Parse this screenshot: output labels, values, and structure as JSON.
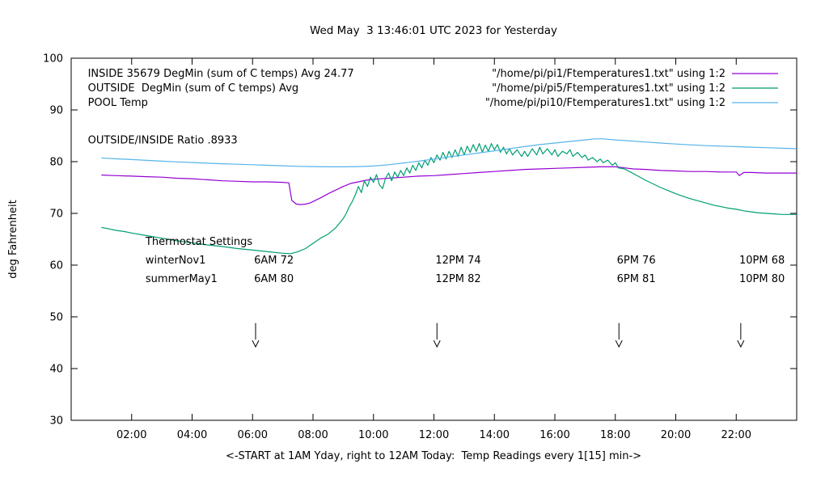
{
  "title": "Wed May  3 13:46:01 UTC 2023 for Yesterday",
  "chart_data": {
    "type": "line",
    "title": "Wed May  3 13:46:01 UTC 2023 for Yesterday",
    "xlabel": "<-START at 1AM Yday, right to 12AM Today:  Temp Readings every 1[15] min->",
    "ylabel": "deg Fahrenheit",
    "xlim": [
      0,
      24
    ],
    "ylim": [
      30,
      100
    ],
    "grid": false,
    "legend_position": "top-right-inside",
    "xticks": [
      {
        "v": 2,
        "label": "02:00"
      },
      {
        "v": 4,
        "label": "04:00"
      },
      {
        "v": 6,
        "label": "06:00"
      },
      {
        "v": 8,
        "label": "08:00"
      },
      {
        "v": 10,
        "label": "10:00"
      },
      {
        "v": 12,
        "label": "12:00"
      },
      {
        "v": 14,
        "label": "14:00"
      },
      {
        "v": 16,
        "label": "16:00"
      },
      {
        "v": 18,
        "label": "18:00"
      },
      {
        "v": 20,
        "label": "20:00"
      },
      {
        "v": 22,
        "label": "22:00"
      }
    ],
    "yticks": [
      {
        "v": 30,
        "label": "30"
      },
      {
        "v": 40,
        "label": "40"
      },
      {
        "v": 50,
        "label": "50"
      },
      {
        "v": 60,
        "label": "60"
      },
      {
        "v": 70,
        "label": "70"
      },
      {
        "v": 80,
        "label": "80"
      },
      {
        "v": 90,
        "label": "90"
      },
      {
        "v": 100,
        "label": "100"
      }
    ],
    "series": [
      {
        "key": "inside",
        "name": "\"/home/pi/pi1/Ftemperatures1.txt\" using 1:2",
        "color": "#9400d3",
        "points": [
          [
            1,
            77.4
          ],
          [
            1.5,
            77.3
          ],
          [
            2,
            77.2
          ],
          [
            2.5,
            77.1
          ],
          [
            3,
            77
          ],
          [
            3.5,
            76.8
          ],
          [
            4,
            76.7
          ],
          [
            4.5,
            76.5
          ],
          [
            5,
            76.3
          ],
          [
            5.5,
            76.2
          ],
          [
            6,
            76.1
          ],
          [
            6.5,
            76.1
          ],
          [
            7,
            76
          ],
          [
            7.2,
            75.9
          ],
          [
            7.3,
            72.5
          ],
          [
            7.45,
            71.8
          ],
          [
            7.6,
            71.7
          ],
          [
            7.75,
            71.8
          ],
          [
            7.9,
            72
          ],
          [
            8,
            72.3
          ],
          [
            8.25,
            73
          ],
          [
            8.5,
            73.8
          ],
          [
            8.75,
            74.5
          ],
          [
            9,
            75.2
          ],
          [
            9.25,
            75.8
          ],
          [
            9.5,
            76.1
          ],
          [
            9.75,
            76.4
          ],
          [
            10,
            76.6
          ],
          [
            10.5,
            76.8
          ],
          [
            11,
            77
          ],
          [
            11.5,
            77.2
          ],
          [
            12,
            77.3
          ],
          [
            12.5,
            77.5
          ],
          [
            13,
            77.7
          ],
          [
            13.5,
            77.9
          ],
          [
            14,
            78.1
          ],
          [
            14.5,
            78.3
          ],
          [
            15,
            78.5
          ],
          [
            15.5,
            78.6
          ],
          [
            16,
            78.7
          ],
          [
            16.5,
            78.8
          ],
          [
            17,
            78.9
          ],
          [
            17.5,
            79
          ],
          [
            18,
            79
          ],
          [
            18.3,
            78.8
          ],
          [
            18.6,
            78.6
          ],
          [
            19,
            78.5
          ],
          [
            19.5,
            78.3
          ],
          [
            20,
            78.2
          ],
          [
            20.5,
            78.1
          ],
          [
            21,
            78.1
          ],
          [
            21.5,
            78
          ],
          [
            22,
            78
          ],
          [
            22.1,
            77.3
          ],
          [
            22.25,
            77.9
          ],
          [
            22.5,
            77.9
          ],
          [
            23,
            77.8
          ],
          [
            23.5,
            77.8
          ],
          [
            24,
            77.8
          ]
        ]
      },
      {
        "key": "outside",
        "name": "\"/home/pi/pi5/Ftemperatures1.txt\" using 1:2",
        "color": "#009e73",
        "points": [
          [
            1,
            67.3
          ],
          [
            1.25,
            67
          ],
          [
            1.5,
            66.7
          ],
          [
            1.75,
            66.5
          ],
          [
            2,
            66.2
          ],
          [
            2.5,
            65.7
          ],
          [
            3,
            65.2
          ],
          [
            3.5,
            64.7
          ],
          [
            4,
            64.3
          ],
          [
            4.5,
            63.9
          ],
          [
            5,
            63.6
          ],
          [
            5.5,
            63.2
          ],
          [
            6,
            62.9
          ],
          [
            6.5,
            62.6
          ],
          [
            7,
            62.3
          ],
          [
            7.25,
            62.2
          ],
          [
            7.5,
            62.6
          ],
          [
            7.75,
            63.2
          ],
          [
            8,
            64.2
          ],
          [
            8.25,
            65.2
          ],
          [
            8.5,
            66
          ],
          [
            8.75,
            67.2
          ],
          [
            9,
            69
          ],
          [
            9.1,
            70
          ],
          [
            9.2,
            71.3
          ],
          [
            9.3,
            72.3
          ],
          [
            9.4,
            73.6
          ],
          [
            9.5,
            75.2
          ],
          [
            9.6,
            74
          ],
          [
            9.7,
            76.3
          ],
          [
            9.8,
            75.2
          ],
          [
            9.9,
            77
          ],
          [
            10,
            76
          ],
          [
            10.1,
            77.5
          ],
          [
            10.2,
            75.5
          ],
          [
            10.3,
            74.8
          ],
          [
            10.4,
            76.8
          ],
          [
            10.5,
            77.8
          ],
          [
            10.6,
            76.3
          ],
          [
            10.7,
            78
          ],
          [
            10.8,
            77
          ],
          [
            10.9,
            78.3
          ],
          [
            11,
            77.3
          ],
          [
            11.1,
            78.8
          ],
          [
            11.2,
            77.8
          ],
          [
            11.3,
            79.3
          ],
          [
            11.4,
            78.3
          ],
          [
            11.5,
            79.8
          ],
          [
            11.6,
            78.8
          ],
          [
            11.7,
            80.3
          ],
          [
            11.8,
            79.3
          ],
          [
            11.9,
            80.8
          ],
          [
            12,
            79.8
          ],
          [
            12.1,
            81.3
          ],
          [
            12.2,
            80.3
          ],
          [
            12.3,
            81.8
          ],
          [
            12.4,
            80.5
          ],
          [
            12.5,
            82
          ],
          [
            12.6,
            80.8
          ],
          [
            12.7,
            82.3
          ],
          [
            12.8,
            81
          ],
          [
            12.9,
            82.8
          ],
          [
            13,
            81.3
          ],
          [
            13.1,
            83
          ],
          [
            13.2,
            81.8
          ],
          [
            13.3,
            83.3
          ],
          [
            13.4,
            82
          ],
          [
            13.5,
            83.5
          ],
          [
            13.6,
            81.8
          ],
          [
            13.7,
            83.2
          ],
          [
            13.8,
            82
          ],
          [
            13.9,
            83.5
          ],
          [
            14,
            82.3
          ],
          [
            14.1,
            83.3
          ],
          [
            14.2,
            81.8
          ],
          [
            14.3,
            82.8
          ],
          [
            14.4,
            81.5
          ],
          [
            14.5,
            82.5
          ],
          [
            14.6,
            81.3
          ],
          [
            14.75,
            82.3
          ],
          [
            14.9,
            81
          ],
          [
            15,
            82
          ],
          [
            15.1,
            81
          ],
          [
            15.25,
            82.5
          ],
          [
            15.4,
            81.3
          ],
          [
            15.5,
            82.8
          ],
          [
            15.6,
            81.5
          ],
          [
            15.75,
            82.5
          ],
          [
            15.9,
            81.3
          ],
          [
            16,
            82.3
          ],
          [
            16.1,
            81
          ],
          [
            16.25,
            82
          ],
          [
            16.4,
            81.5
          ],
          [
            16.5,
            82.3
          ],
          [
            16.6,
            81
          ],
          [
            16.75,
            81.8
          ],
          [
            16.9,
            80.8
          ],
          [
            17,
            81.3
          ],
          [
            17.1,
            80.3
          ],
          [
            17.25,
            80.8
          ],
          [
            17.4,
            80
          ],
          [
            17.5,
            80.5
          ],
          [
            17.6,
            79.8
          ],
          [
            17.75,
            80.3
          ],
          [
            17.9,
            79.3
          ],
          [
            18,
            79.8
          ],
          [
            18.1,
            78.8
          ],
          [
            18.3,
            78.6
          ],
          [
            18.5,
            78
          ],
          [
            18.75,
            77.2
          ],
          [
            19,
            76.4
          ],
          [
            19.25,
            75.7
          ],
          [
            19.5,
            75
          ],
          [
            19.75,
            74.4
          ],
          [
            20,
            73.8
          ],
          [
            20.25,
            73.3
          ],
          [
            20.5,
            72.8
          ],
          [
            20.75,
            72.4
          ],
          [
            21,
            72
          ],
          [
            21.25,
            71.6
          ],
          [
            21.5,
            71.3
          ],
          [
            21.75,
            71
          ],
          [
            22,
            70.8
          ],
          [
            22.25,
            70.5
          ],
          [
            22.5,
            70.3
          ],
          [
            22.75,
            70.1
          ],
          [
            23,
            70
          ],
          [
            23.25,
            69.9
          ],
          [
            23.5,
            69.8
          ],
          [
            23.75,
            69.8
          ],
          [
            24,
            69.8
          ]
        ]
      },
      {
        "key": "pool",
        "name": "\"/home/pi/pi10/Ftemperatures1.txt\" using 1:2",
        "color": "#56b4e9",
        "points": [
          [
            1,
            80.7
          ],
          [
            1.5,
            80.55
          ],
          [
            2,
            80.4
          ],
          [
            2.5,
            80.25
          ],
          [
            3,
            80.1
          ],
          [
            3.5,
            79.95
          ],
          [
            4,
            79.85
          ],
          [
            4.5,
            79.7
          ],
          [
            5,
            79.6
          ],
          [
            5.5,
            79.5
          ],
          [
            6,
            79.4
          ],
          [
            6.5,
            79.3
          ],
          [
            7,
            79.2
          ],
          [
            7.5,
            79.1
          ],
          [
            8,
            79.05
          ],
          [
            8.5,
            79
          ],
          [
            9,
            79
          ],
          [
            9.5,
            79.05
          ],
          [
            10,
            79.15
          ],
          [
            10.5,
            79.4
          ],
          [
            11,
            79.75
          ],
          [
            11.5,
            80.1
          ],
          [
            12,
            80.5
          ],
          [
            12.5,
            80.9
          ],
          [
            13,
            81.3
          ],
          [
            13.5,
            81.7
          ],
          [
            14,
            82.1
          ],
          [
            14.5,
            82.5
          ],
          [
            15,
            82.9
          ],
          [
            15.5,
            83.3
          ],
          [
            16,
            83.6
          ],
          [
            16.5,
            83.9
          ],
          [
            17,
            84.2
          ],
          [
            17.3,
            84.4
          ],
          [
            17.6,
            84.4
          ],
          [
            18,
            84.2
          ],
          [
            18.5,
            84
          ],
          [
            19,
            83.8
          ],
          [
            19.5,
            83.6
          ],
          [
            20,
            83.4
          ],
          [
            20.5,
            83.25
          ],
          [
            21,
            83.1
          ],
          [
            21.5,
            83
          ],
          [
            22,
            82.9
          ],
          [
            22.5,
            82.8
          ],
          [
            23,
            82.7
          ],
          [
            23.5,
            82.6
          ],
          [
            24,
            82.5
          ]
        ]
      }
    ],
    "annotations": [
      {
        "text": "INSIDE 35679 DegMin (sum of C temps) Avg 24.77",
        "x": 0.55,
        "y": 96.4
      },
      {
        "text": "OUTSIDE  DegMin (sum of C temps) Avg",
        "x": 0.55,
        "y": 93.6
      },
      {
        "text": "POOL Temp",
        "x": 0.55,
        "y": 90.8
      },
      {
        "text": "OUTSIDE/INSIDE Ratio .8933",
        "x": 0.55,
        "y": 83.5
      },
      {
        "text": "Thermostat Settings",
        "x": 2.46,
        "y": 63.9
      },
      {
        "text": "winterNov1",
        "x": 2.46,
        "y": 60.3
      },
      {
        "text": "6AM 72",
        "x": 6.05,
        "y": 60.3
      },
      {
        "text": "12PM 74",
        "x": 12.05,
        "y": 60.3
      },
      {
        "text": "6PM 76",
        "x": 18.05,
        "y": 60.3
      },
      {
        "text": "10PM 68",
        "x": 22.1,
        "y": 60.3
      },
      {
        "text": "summerMay1",
        "x": 2.46,
        "y": 56.7
      },
      {
        "text": "6AM 80",
        "x": 6.05,
        "y": 56.7
      },
      {
        "text": "12PM 82",
        "x": 12.05,
        "y": 56.7
      },
      {
        "text": "6PM 81",
        "x": 18.05,
        "y": 56.7
      },
      {
        "text": "10PM 80",
        "x": 22.1,
        "y": 56.7
      }
    ],
    "arrows": [
      {
        "x": 6.1,
        "y_from": 48.8,
        "y_to": 44.2
      },
      {
        "x": 12.1,
        "y_from": 48.8,
        "y_to": 44.2
      },
      {
        "x": 18.12,
        "y_from": 48.8,
        "y_to": 44.2
      },
      {
        "x": 22.15,
        "y_from": 48.8,
        "y_to": 44.2
      }
    ]
  }
}
